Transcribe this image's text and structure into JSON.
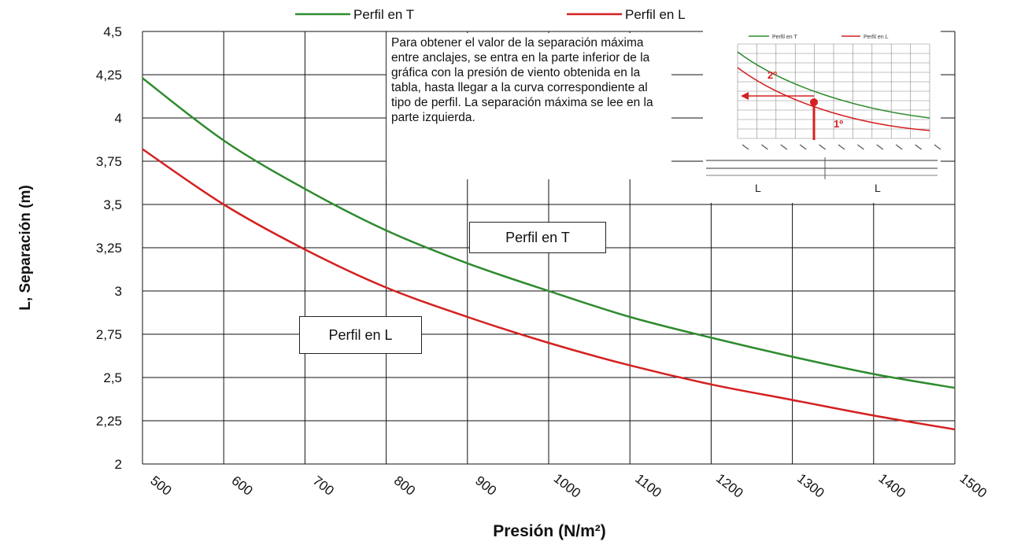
{
  "chart_data": {
    "type": "line",
    "title": "",
    "xlabel": "Presión (N/m²)",
    "ylabel": "L, Separación (m)",
    "xlim": [
      500,
      1500
    ],
    "ylim": [
      2,
      4.5
    ],
    "x_ticks": [
      "500",
      "600",
      "700",
      "800",
      "900",
      "1000",
      "1100",
      "1200",
      "1300",
      "1400",
      "1500"
    ],
    "y_ticks": [
      "2",
      "2,25",
      "2,5",
      "2,75",
      "3",
      "3,25",
      "3,5",
      "3,75",
      "4",
      "4,25",
      "4,5"
    ],
    "grid": true,
    "legend_position": "top",
    "series": [
      {
        "name": "Perfil en T",
        "color": "#2e8b2e",
        "x": [
          500,
          600,
          700,
          800,
          900,
          1000,
          1100,
          1200,
          1300,
          1400,
          1500
        ],
        "values": [
          4.23,
          3.87,
          3.59,
          3.35,
          3.16,
          3.0,
          2.85,
          2.73,
          2.62,
          2.52,
          2.44
        ]
      },
      {
        "name": "Perfil en L",
        "color": "#d42020",
        "x": [
          500,
          600,
          700,
          800,
          900,
          1000,
          1100,
          1200,
          1300,
          1400,
          1500
        ],
        "values": [
          3.82,
          3.5,
          3.24,
          3.02,
          2.85,
          2.7,
          2.57,
          2.46,
          2.37,
          2.28,
          2.2
        ]
      }
    ]
  },
  "annotations": {
    "note": "Para obtener el valor de la separación máxima entre anclajes, se entra en la parte inferior de la gráfica con la presión de viento obtenida en la tabla, hasta llegar a la curva correspondiente al tipo de perfil. La separación máxima se lee en la parte izquierda.",
    "label_t": "Perfil en T",
    "label_l": "Perfil en L"
  },
  "inset": {
    "legend": [
      "Perfil en T",
      "Perfil en L"
    ],
    "markers": [
      "2º",
      "1º"
    ],
    "span_labels": [
      "L",
      "L"
    ]
  }
}
